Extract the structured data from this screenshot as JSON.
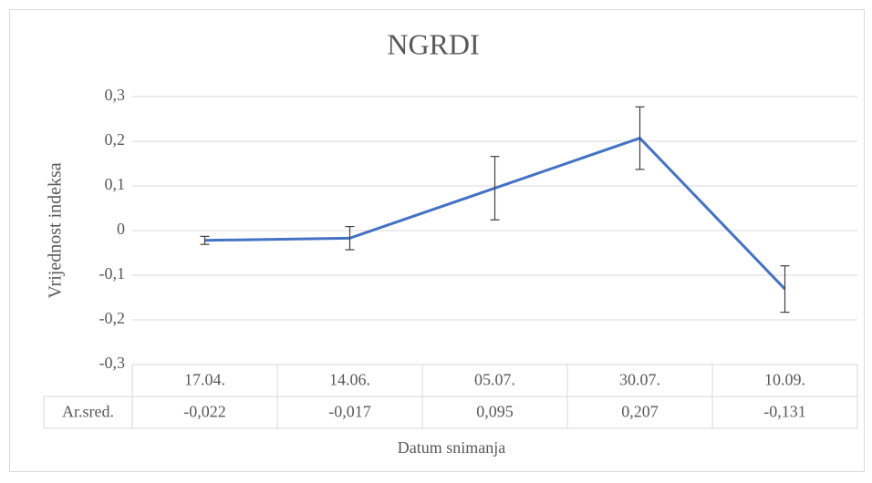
{
  "chart_data": {
    "type": "line",
    "title": "NGRDI",
    "x_label": "Datum snimanja",
    "y_label": "Vrijednost indeksa",
    "categories": [
      "17.04.",
      "14.06.",
      "05.07.",
      "30.07.",
      "10.09."
    ],
    "series": [
      {
        "name": "Ar.sred.",
        "color": "#4472c4",
        "values": [
          -0.022,
          -0.017,
          0.095,
          0.207,
          -0.131
        ],
        "value_labels": [
          "-0,022",
          "-0,017",
          "0,095",
          "0,207",
          "-0,131"
        ],
        "errors": [
          0.009,
          0.026,
          0.071,
          0.07,
          0.052
        ]
      }
    ],
    "ylim": [
      -0.3,
      0.3
    ],
    "yticks": [
      {
        "value": -0.3,
        "label": "-0,3"
      },
      {
        "value": -0.2,
        "label": "-0,2"
      },
      {
        "value": -0.1,
        "label": "-0,1"
      },
      0,
      {
        "value": 0.1,
        "label": "0,1"
      },
      {
        "value": 0.2,
        "label": "0,2"
      },
      {
        "value": 0.3,
        "label": "0,3"
      }
    ],
    "grid": true,
    "data_table": true
  }
}
